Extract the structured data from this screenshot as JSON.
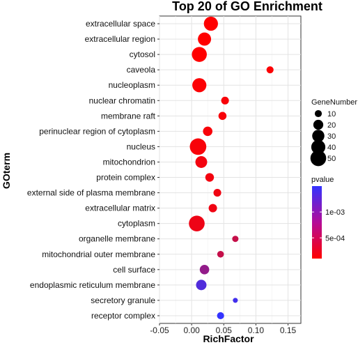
{
  "chart_data": {
    "type": "scatter",
    "title": "Top 20 of GO Enrichment",
    "xlabel": "RichFactor",
    "ylabel": "GOterm",
    "xlim": [
      -0.05,
      0.17
    ],
    "xticks": [
      "-0.05",
      "0.00",
      "0.05",
      "0.10",
      "0.15"
    ],
    "xtick_values": [
      -0.05,
      0.0,
      0.05,
      0.1,
      0.15
    ],
    "grid": true,
    "points": [
      {
        "term": "extracellular space",
        "rich_factor": 0.03,
        "gene_number": 40,
        "pvalue": 0.0001
      },
      {
        "term": "extracellular region",
        "rich_factor": 0.02,
        "gene_number": 35,
        "pvalue": 0.0001
      },
      {
        "term": "cytosol",
        "rich_factor": 0.012,
        "gene_number": 45,
        "pvalue": 0.0001
      },
      {
        "term": "caveola",
        "rich_factor": 0.122,
        "gene_number": 10,
        "pvalue": 0.00012
      },
      {
        "term": "nucleoplasm",
        "rich_factor": 0.012,
        "gene_number": 40,
        "pvalue": 0.00012
      },
      {
        "term": "nuclear chromatin",
        "rich_factor": 0.052,
        "gene_number": 12,
        "pvalue": 0.00015
      },
      {
        "term": "membrane raft",
        "rich_factor": 0.048,
        "gene_number": 13,
        "pvalue": 0.00015
      },
      {
        "term": "perinuclear region of cytoplasm",
        "rich_factor": 0.025,
        "gene_number": 18,
        "pvalue": 0.00015
      },
      {
        "term": "nucleus",
        "rich_factor": 0.01,
        "gene_number": 55,
        "pvalue": 0.00015
      },
      {
        "term": "mitochondrion",
        "rich_factor": 0.015,
        "gene_number": 28,
        "pvalue": 0.00018
      },
      {
        "term": "protein complex",
        "rich_factor": 0.028,
        "gene_number": 15,
        "pvalue": 0.00018
      },
      {
        "term": "external side of plasma membrane",
        "rich_factor": 0.04,
        "gene_number": 12,
        "pvalue": 0.0002
      },
      {
        "term": "extracellular matrix",
        "rich_factor": 0.033,
        "gene_number": 14,
        "pvalue": 0.0002
      },
      {
        "term": "cytoplasm",
        "rich_factor": 0.008,
        "gene_number": 50,
        "pvalue": 0.00022
      },
      {
        "term": "organelle membrane",
        "rich_factor": 0.068,
        "gene_number": 8,
        "pvalue": 0.0005
      },
      {
        "term": "mitochondrial outer membrane",
        "rich_factor": 0.045,
        "gene_number": 9,
        "pvalue": 0.0005
      },
      {
        "term": "cell surface",
        "rich_factor": 0.02,
        "gene_number": 18,
        "pvalue": 0.00085
      },
      {
        "term": "endoplasmic reticulum membrane",
        "rich_factor": 0.015,
        "gene_number": 22,
        "pvalue": 0.0013
      },
      {
        "term": "secretory granule",
        "rich_factor": 0.068,
        "gene_number": 5,
        "pvalue": 0.0014
      },
      {
        "term": "receptor complex",
        "rich_factor": 0.045,
        "gene_number": 10,
        "pvalue": 0.0015
      }
    ],
    "size_legend": {
      "title": "GeneNumber",
      "values": [
        10,
        20,
        30,
        40,
        50
      ],
      "labels": [
        "10",
        "20",
        "30",
        "40",
        "50"
      ]
    },
    "color_legend": {
      "title": "pvalue",
      "range": [
        0.0001,
        0.0015
      ],
      "low_color": "#ff0000",
      "high_color": "#3333ff",
      "ticks": [
        0.001,
        0.0005
      ],
      "labels": [
        "1e-03",
        "5e-04"
      ]
    }
  }
}
